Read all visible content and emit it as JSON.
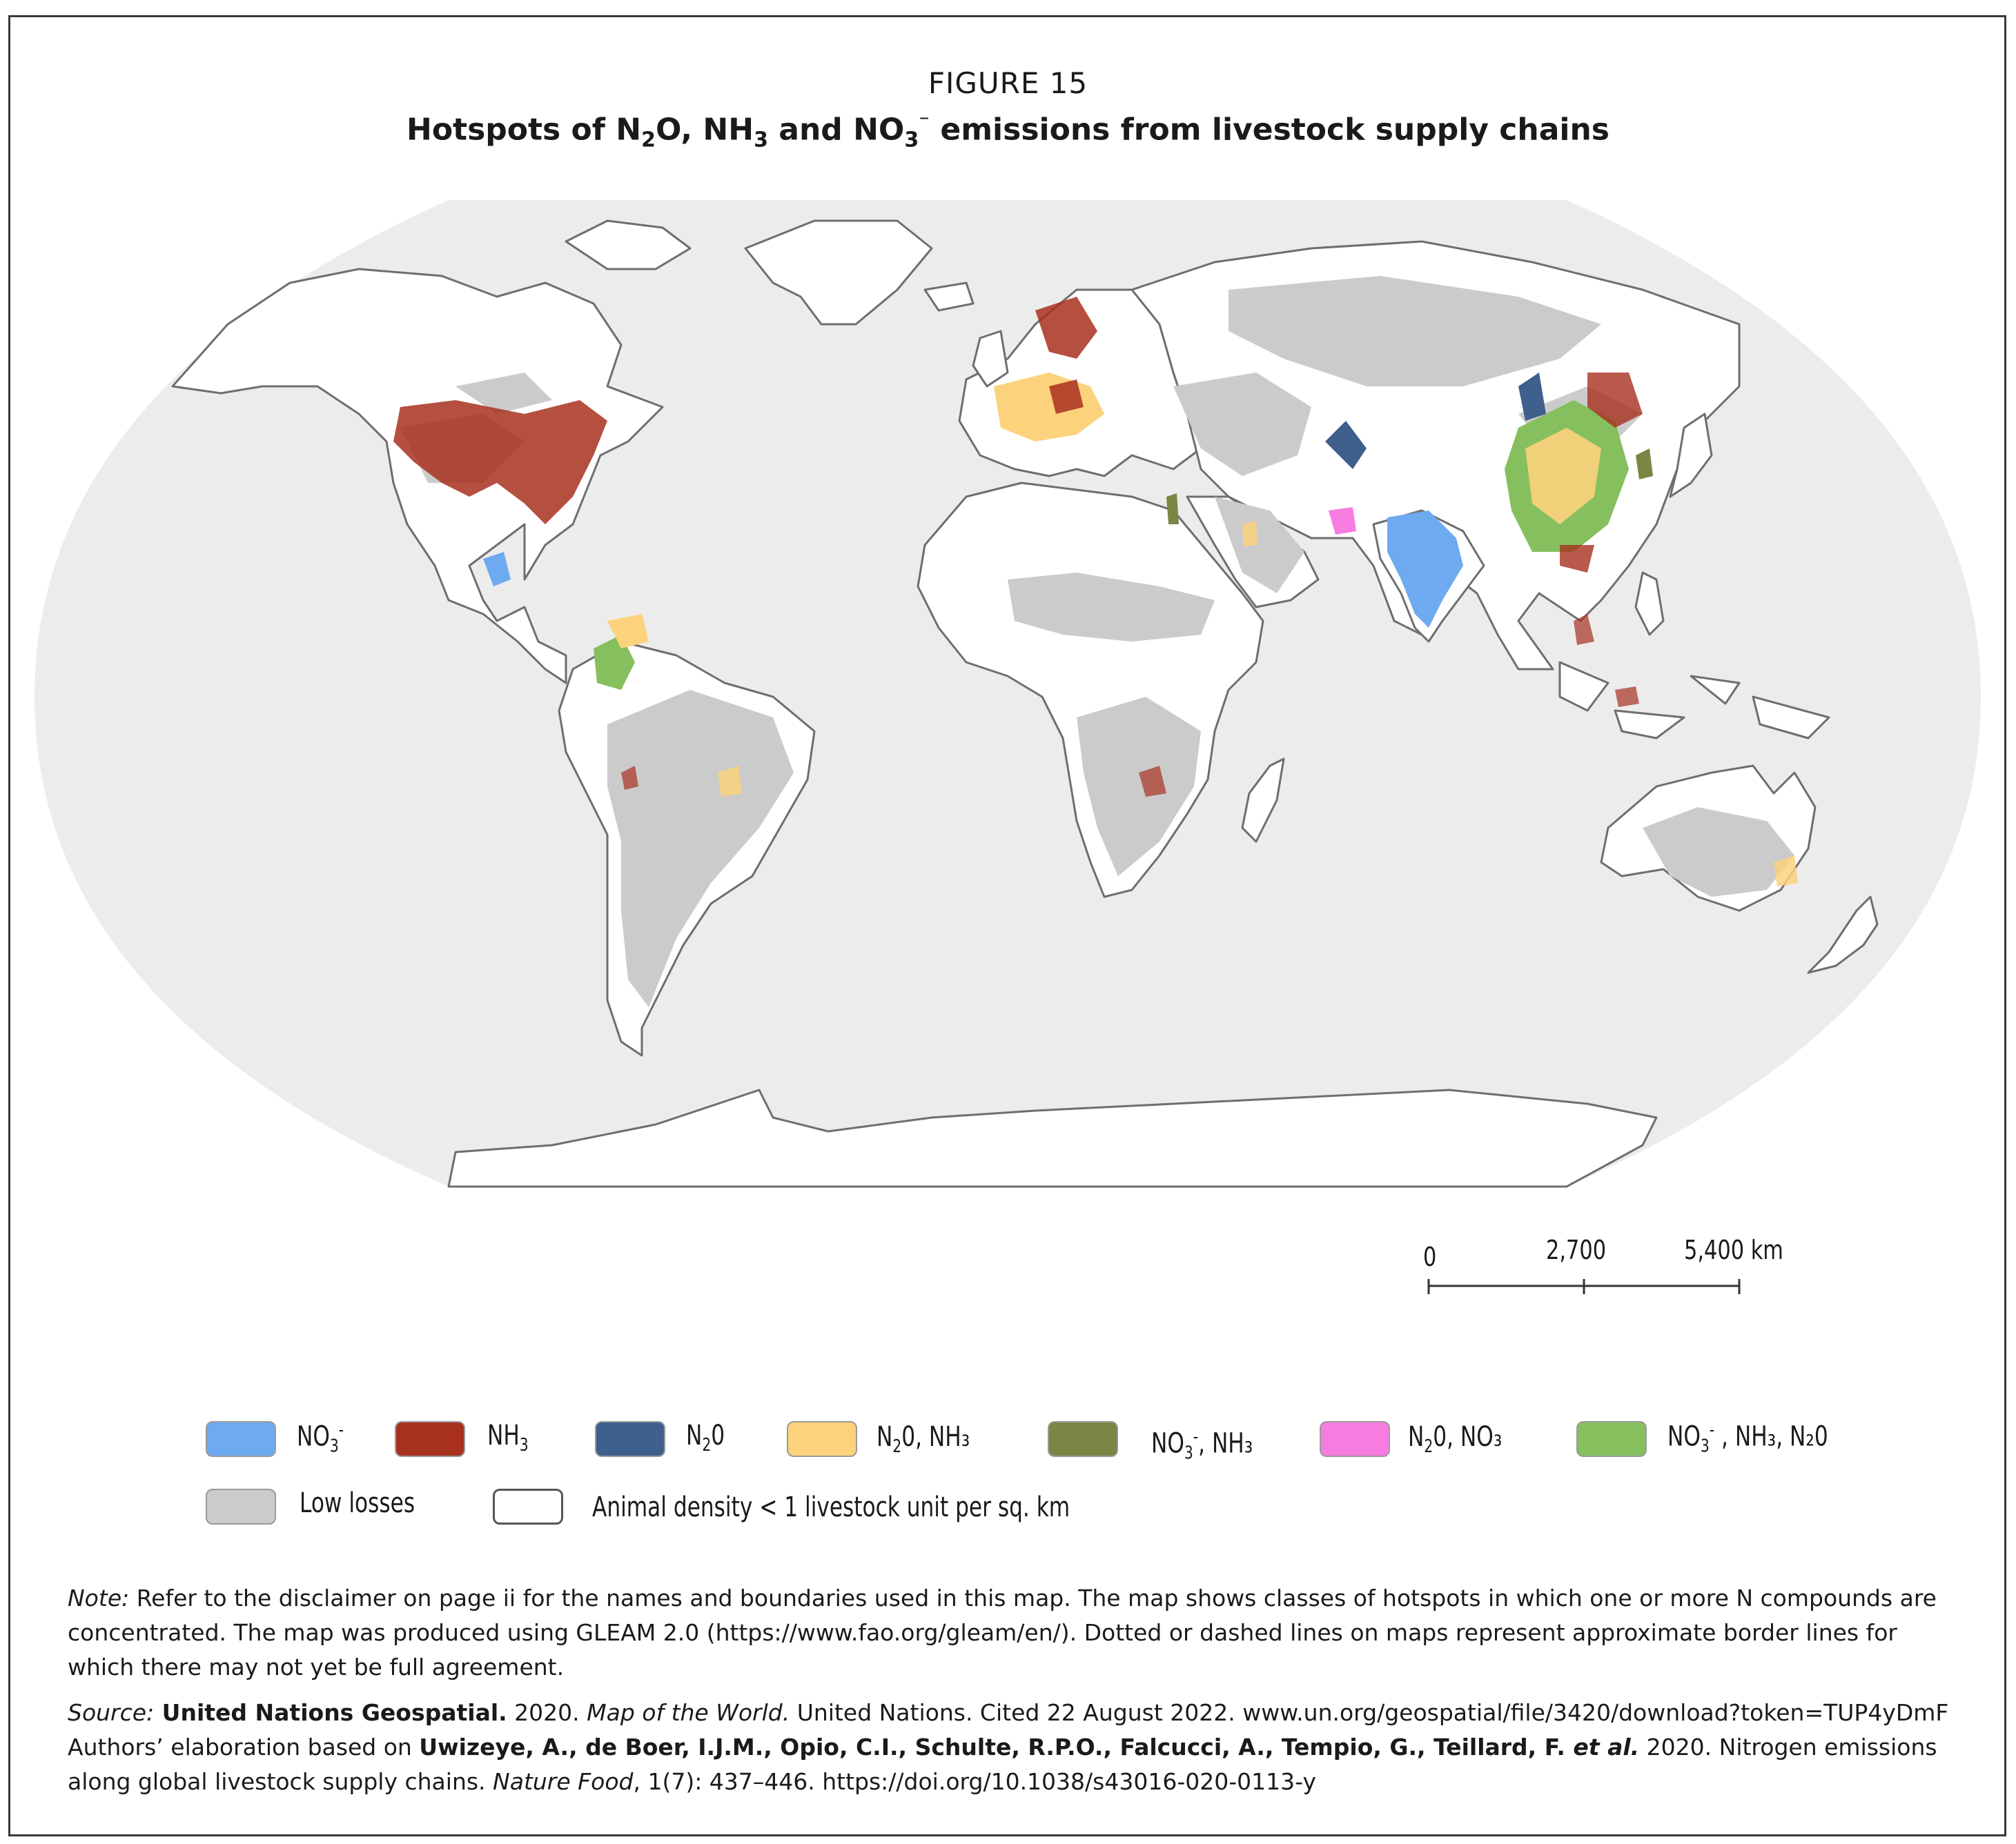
{
  "figure": {
    "label": "FIGURE 15",
    "title_parts": [
      "Hotspots of N",
      "2",
      "O, NH",
      "3",
      " and NO",
      "3",
      "⁻",
      " emissions from livestock supply chains"
    ]
  },
  "map": {
    "projection": "Robinson world map",
    "background_color": "#ececec",
    "land_color": "#ffffff",
    "border_color": "#6e6e6e"
  },
  "scale_bar": {
    "labels": [
      "0",
      "2,700",
      "5,400 km"
    ]
  },
  "legend": {
    "items": [
      {
        "label": "NO",
        "sub": "3",
        "sup": "-",
        "rest": "",
        "color": "#6eaaf0"
      },
      {
        "label": "NH",
        "sub": "3",
        "sup": "",
        "rest": "",
        "color": "#a8301f"
      },
      {
        "label": "N",
        "sub": "2",
        "sup": "",
        "rest": "0",
        "color": "#3f5f8c"
      },
      {
        "label": "N",
        "sub": "2",
        "sup": "",
        "rest": "0, NH₃",
        "color": "#fcd27c"
      },
      {
        "label": "NO",
        "sub": "3",
        "sup": "-",
        "rest": ", NH₃",
        "color": "#7c8544"
      },
      {
        "label": "N",
        "sub": "2",
        "sup": "",
        "rest": "0, NO₃",
        "color": "#f67ce0"
      },
      {
        "label": "NO",
        "sub": "3",
        "sup": "-",
        "rest": " , NH₃, N₂0",
        "color": "#85bf5e"
      },
      {
        "label": "Low losses",
        "sub": "",
        "sup": "",
        "rest": "",
        "color": "#cbcbcb"
      },
      {
        "label": "Animal density < 1 livestock unit per sq. km",
        "sub": "",
        "sup": "",
        "rest": "",
        "color": "#ffffff"
      }
    ]
  },
  "note": {
    "prefix": "Note:",
    "text": " Refer to the disclaimer on page ii for the names and boundaries used in this map. The map shows classes of hotspots in which one or more N compounds are concentrated. The map was produced using GLEAM 2.0 (https://www.fao.org/gleam/en/). Dotted or dashed lines on maps represent approximate border lines for which there may not yet be full agreement."
  },
  "source": {
    "prefix": "Source:",
    "org": " United Nations Geospatial.",
    "year": " 2020. ",
    "map_title": "Map of the World.",
    "rest1": " United Nations. Cited 22 August 2022. www.un.org/geospatial/file/3420/download?token=TUP4yDmF",
    "line2_pre": "Authors’ elaboration based on ",
    "authors": "Uwizeye, A., de Boer, I.J.M., Opio, C.I., Schulte, R.P.O., Falcucci, A., Tempio, G., Teillard, F. ",
    "etal": "et al.",
    "rest2": " 2020. Nitrogen emissions along global livestock supply chains. ",
    "journal": "Nature Food",
    "rest3": ", 1(7): 437–446. https://doi.org/10.1038/s43016-020-0113-y"
  }
}
